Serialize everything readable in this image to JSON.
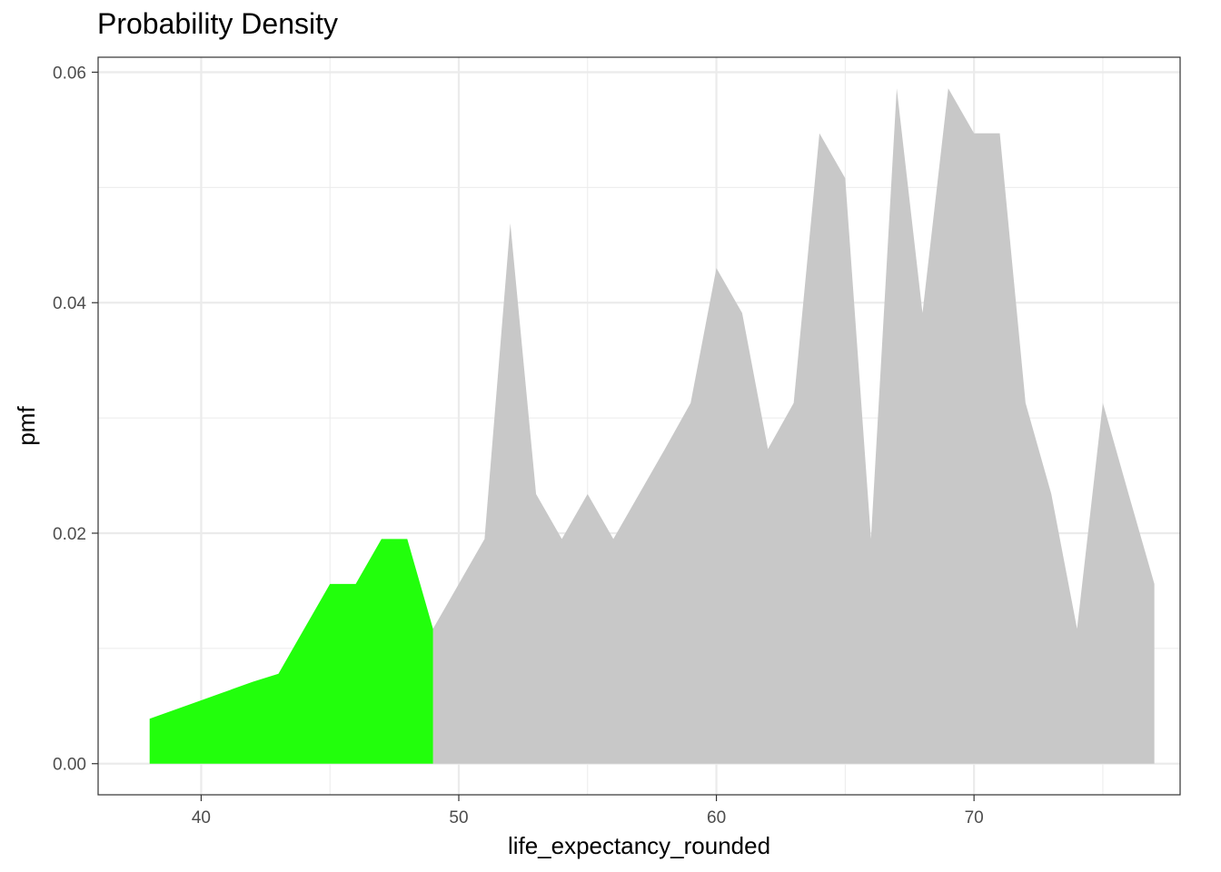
{
  "chart_data": {
    "type": "area",
    "title": "Probability Density",
    "xlabel": "life_expectancy_rounded",
    "ylabel": "pmf",
    "xlim": [
      36,
      78
    ],
    "ylim": [
      -0.0027,
      0.0613
    ],
    "x_ticks": [
      40,
      50,
      60,
      70
    ],
    "y_ticks": [
      0.0,
      0.02,
      0.04,
      0.06
    ],
    "x_tick_labels": [
      "40",
      "50",
      "60",
      "70"
    ],
    "y_tick_labels": [
      "0.00",
      "0.02",
      "0.04",
      "0.06"
    ],
    "grid": true,
    "highlight_threshold": 49,
    "colors": {
      "highlight": "#22ff0c",
      "base": "#c8c8c8",
      "grid": "#ebebeb",
      "border": "#333333"
    },
    "x": [
      38,
      39,
      40,
      41,
      42,
      43,
      44,
      45,
      46,
      47,
      48,
      49,
      50,
      51,
      52,
      53,
      54,
      55,
      56,
      57,
      58,
      59,
      60,
      61,
      62,
      63,
      64,
      65,
      66,
      67,
      68,
      69,
      70,
      71,
      72,
      73,
      74,
      75,
      76,
      77
    ],
    "values": [
      0.0039,
      0.0047,
      0.0055,
      0.0063,
      0.0071,
      0.0078,
      0.0117,
      0.0156,
      0.0156,
      0.0195,
      0.0195,
      0.0117,
      0.0156,
      0.0195,
      0.0469,
      0.0234,
      0.0195,
      0.0234,
      0.0195,
      0.0234,
      0.0273,
      0.0313,
      0.043,
      0.0391,
      0.0273,
      0.0313,
      0.0547,
      0.0508,
      0.0195,
      0.0586,
      0.0391,
      0.0586,
      0.0547,
      0.0547,
      0.0313,
      0.0234,
      0.0117,
      0.0313,
      0.0234,
      0.0156
    ]
  }
}
